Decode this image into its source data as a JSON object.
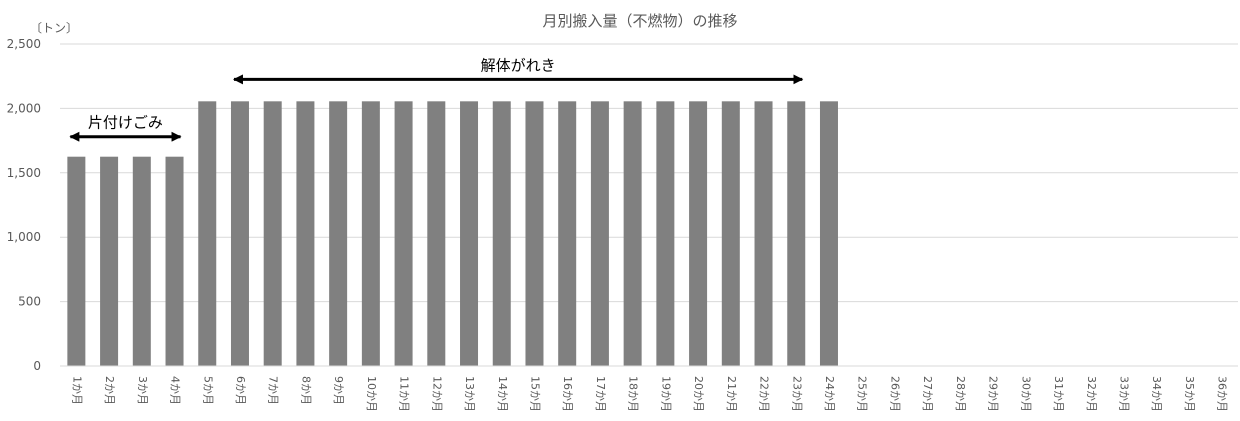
{
  "chart_data": {
    "type": "bar",
    "title": "月別搬入量（不燃物）の推移",
    "unit_label": "〔トン〕",
    "xlabel": "",
    "ylabel": "",
    "ylim": [
      0,
      2500
    ],
    "yticks": [
      "0",
      "500",
      "1,000",
      "1,500",
      "2,000",
      "2,500"
    ],
    "ytick_values": [
      0,
      500,
      1000,
      1500,
      2000,
      2500
    ],
    "grid": true,
    "bar_color": "#808080",
    "categories": [
      "1か月",
      "2か月",
      "3か月",
      "4か月",
      "5か月",
      "6か月",
      "7か月",
      "8か月",
      "9か月",
      "10か月",
      "11か月",
      "12か月",
      "13か月",
      "14か月",
      "15か月",
      "16か月",
      "17か月",
      "18か月",
      "19か月",
      "20か月",
      "21か月",
      "22か月",
      "23か月",
      "24か月",
      "25か月",
      "26か月",
      "27か月",
      "28か月",
      "29か月",
      "30か月",
      "31か月",
      "32か月",
      "33か月",
      "34か月",
      "35か月",
      "36か月"
    ],
    "values": [
      1625,
      1625,
      1625,
      1625,
      2055,
      2055,
      2055,
      2055,
      2055,
      2055,
      2055,
      2055,
      2055,
      2055,
      2055,
      2055,
      2055,
      2055,
      2055,
      2055,
      2055,
      2055,
      2055,
      2055,
      0,
      0,
      0,
      0,
      0,
      0,
      0,
      0,
      0,
      0,
      0,
      0
    ],
    "annotations": [
      {
        "text": "片付けごみ",
        "from": "1か月",
        "to": "4か月",
        "y": 1780,
        "arrow": "double"
      },
      {
        "text": "解体がれき",
        "from": "6か月",
        "to": "23か月",
        "y": 2225,
        "arrow": "double"
      }
    ]
  }
}
